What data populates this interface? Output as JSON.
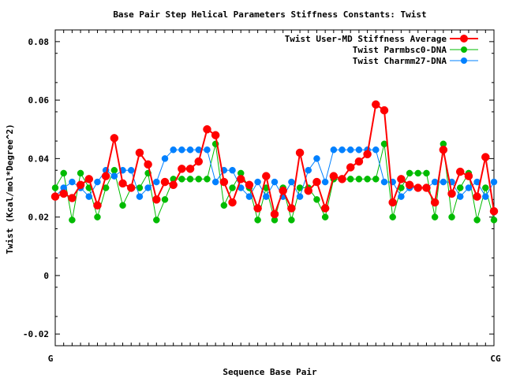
{
  "chart_data": {
    "type": "line",
    "title": "Base Pair Step Helical Parameters Stiffness Constants: Twist",
    "xlabel": "Sequence Base Pair",
    "ylabel": "Twist (Kcal/mol*Degree^2)",
    "ylim": [
      -0.024,
      0.084
    ],
    "yticks": [
      -0.02,
      0,
      0.02,
      0.04,
      0.06,
      0.08
    ],
    "ytick_labels": [
      "-0.02",
      "0",
      "0.02",
      "0.04",
      "0.06",
      "0.08"
    ],
    "x_tick_left": "G",
    "x_tick_right": "CG",
    "grid": false,
    "legend_position": "top-right",
    "series": [
      {
        "name": "Twist User-MD Stiffness Average",
        "color": "#ff0000",
        "values": [
          0.027,
          0.028,
          0.0265,
          0.031,
          0.033,
          0.024,
          0.034,
          0.047,
          0.0315,
          0.03,
          0.042,
          0.038,
          0.026,
          0.032,
          0.031,
          0.0365,
          0.0365,
          0.039,
          0.05,
          0.048,
          0.032,
          0.025,
          0.033,
          0.031,
          0.023,
          0.034,
          0.021,
          0.029,
          0.023,
          0.042,
          0.029,
          0.032,
          0.023,
          0.034,
          0.033,
          0.037,
          0.039,
          0.0415,
          0.0585,
          0.0565,
          0.025,
          0.033,
          0.031,
          0.03,
          0.03,
          0.025,
          0.043,
          0.028,
          0.0355,
          0.034,
          0.027,
          0.0405,
          0.022
        ]
      },
      {
        "name": "Twist Parmbsc0-DNA",
        "color": "#00bb00",
        "values": [
          0.03,
          0.035,
          0.019,
          0.035,
          0.03,
          0.02,
          0.03,
          0.036,
          0.024,
          0.03,
          0.03,
          0.035,
          0.019,
          0.026,
          0.033,
          0.033,
          0.033,
          0.033,
          0.033,
          0.045,
          0.024,
          0.03,
          0.035,
          0.03,
          0.019,
          0.03,
          0.019,
          0.03,
          0.019,
          0.03,
          0.03,
          0.026,
          0.02,
          0.033,
          0.033,
          0.033,
          0.033,
          0.033,
          0.033,
          0.045,
          0.02,
          0.03,
          0.035,
          0.035,
          0.035,
          0.02,
          0.045,
          0.02,
          0.03,
          0.035,
          0.019,
          0.03,
          0.019
        ]
      },
      {
        "name": "Twist Charmm27-DNA",
        "color": "#0080ff",
        "values": [
          0.027,
          0.03,
          0.032,
          0.03,
          0.027,
          0.032,
          0.036,
          0.034,
          0.036,
          0.036,
          0.027,
          0.03,
          0.032,
          0.04,
          0.043,
          0.043,
          0.043,
          0.043,
          0.043,
          0.032,
          0.036,
          0.036,
          0.03,
          0.027,
          0.032,
          0.027,
          0.032,
          0.027,
          0.032,
          0.027,
          0.036,
          0.04,
          0.032,
          0.043,
          0.043,
          0.043,
          0.043,
          0.043,
          0.043,
          0.032,
          0.032,
          0.027,
          0.03,
          0.03,
          0.03,
          0.032,
          0.032,
          0.032,
          0.027,
          0.03,
          0.032,
          0.027,
          0.032
        ]
      }
    ]
  }
}
